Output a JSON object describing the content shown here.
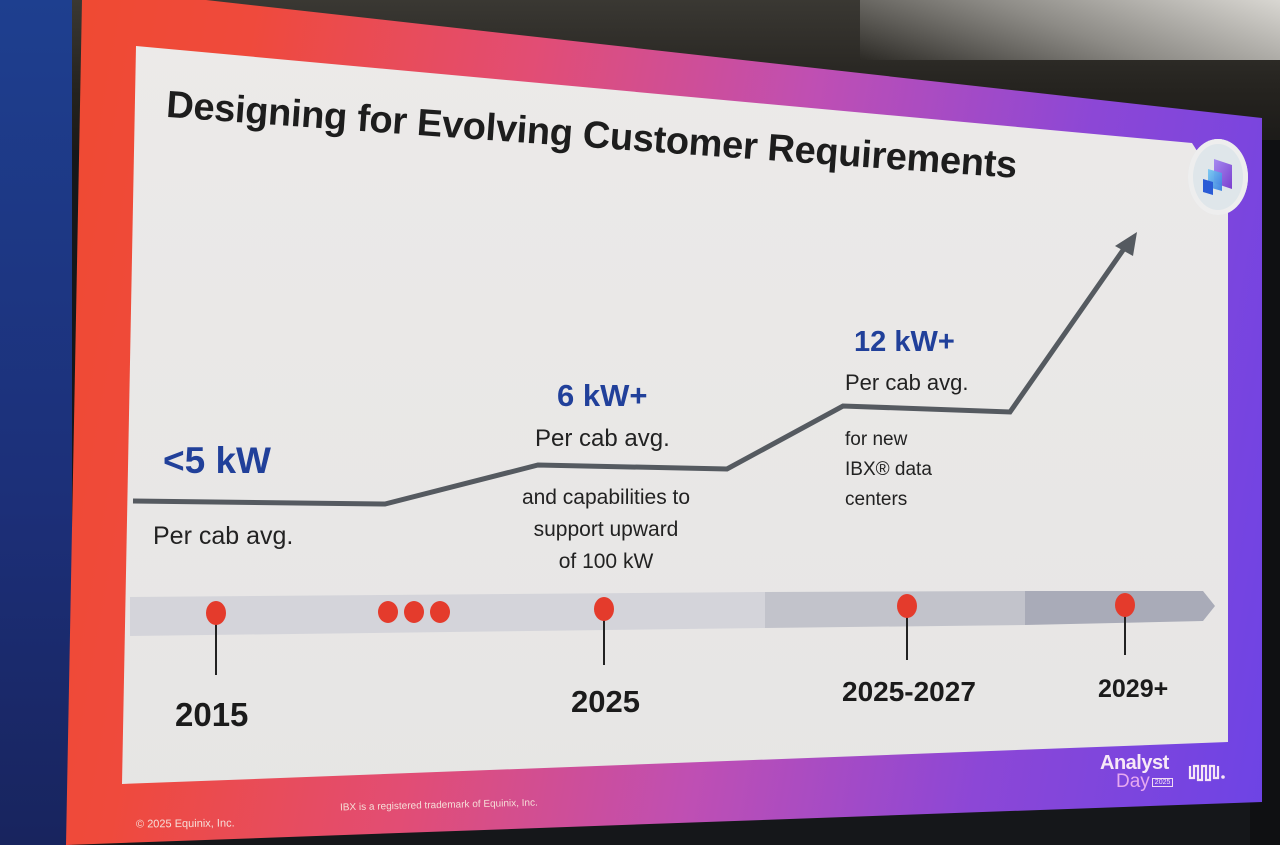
{
  "slide": {
    "title": "Designing for Evolving Customer Requirements",
    "colors": {
      "frame_start": "#ef4a2e",
      "frame_end": "#6b43e6",
      "value_blue": "#21409a",
      "line_gray": "#555a60",
      "marker_red": "#e43b2c",
      "track_light": "#d4d4da",
      "track_mid": "#c2c3cb",
      "track_dark": "#a9abb8"
    },
    "badge_icon": "stacked-squares-icon"
  },
  "stages": [
    {
      "value": "<5 kW",
      "caption": "Per cab avg.",
      "note": [],
      "period": "2015"
    },
    {
      "value": "6 kW+",
      "caption": "Per cab avg.",
      "note": [
        "and capabilities to",
        "support upward",
        "of 100 kW"
      ],
      "period": "2025"
    },
    {
      "value": "12 kW+",
      "caption": "Per cab avg.",
      "note": [
        "for new",
        "IBX® data",
        "centers"
      ],
      "period": "2025-2027"
    },
    {
      "value": "",
      "caption": "",
      "note": [],
      "period": "2029+"
    }
  ],
  "timeline": {
    "ellipsis_dots": 3,
    "trend": "increasing",
    "levels_kw": [
      5,
      6,
      12,
      null
    ]
  },
  "footer": {
    "copyright": "© 2025 Equinix, Inc.",
    "trademark": "IBX is a registered trademark of Equinix, Inc.",
    "event_line1": "Analyst",
    "event_line2": "Day",
    "event_year": "2025",
    "brand_icon": "equinix-logo-icon"
  }
}
